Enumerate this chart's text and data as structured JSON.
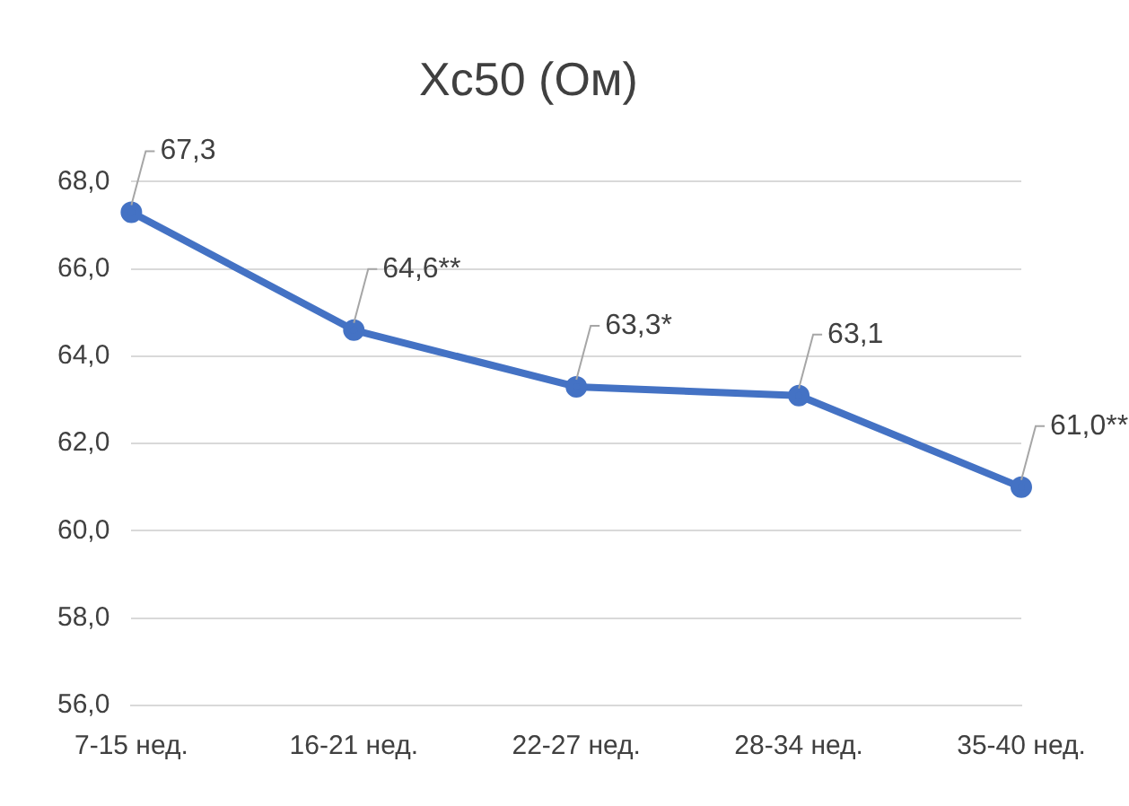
{
  "chart_data": {
    "type": "line",
    "title": "Xc50 (Ом)",
    "categories": [
      "7-15 нед.",
      "16-21 нед.",
      "22-27 нед.",
      "28-34 нед.",
      "35-40 нед."
    ],
    "series": [
      {
        "color": "#4472c4",
        "values": [
          67.3,
          64.6,
          63.3,
          63.1,
          61.0
        ],
        "value_labels": [
          "67,3",
          "64,6**",
          "63,3*",
          "63,1",
          "61,0**"
        ]
      }
    ],
    "ylim": [
      56,
      68
    ],
    "yticks": [
      {
        "value": 56,
        "label": "56,0"
      },
      {
        "value": 58,
        "label": "58,0"
      },
      {
        "value": 60,
        "label": "60,0"
      },
      {
        "value": 62,
        "label": "62,0"
      },
      {
        "value": 64,
        "label": "64,0"
      },
      {
        "value": 66,
        "label": "66,0"
      },
      {
        "value": 68,
        "label": "68,0"
      }
    ],
    "grid": "y",
    "legend": false,
    "marker": "circle",
    "line_style": "solid"
  }
}
